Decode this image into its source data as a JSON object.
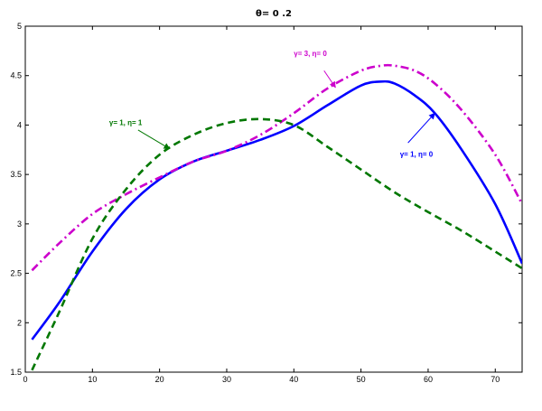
{
  "chart_data": {
    "type": "line",
    "title": "θ= 0 .2",
    "xlabel": "",
    "ylabel": "",
    "xlim": [
      0,
      74
    ],
    "ylim": [
      1.5,
      5
    ],
    "xticks": [
      0,
      10,
      20,
      30,
      40,
      50,
      60,
      70
    ],
    "yticks": [
      1.5,
      2,
      2.5,
      3,
      3.5,
      4,
      4.5,
      5
    ],
    "xtick_labels": [
      "0",
      "10",
      "20",
      "30",
      "40",
      "50",
      "60",
      "70"
    ],
    "ytick_labels": [
      "1.5",
      "2",
      "2.5",
      "3",
      "3.5",
      "4",
      "4.5",
      "5"
    ],
    "grid": false,
    "legend": "none",
    "series": [
      {
        "color": "#0000ff",
        "style": "solid",
        "x": [
          1,
          5,
          10,
          15,
          20,
          25,
          30,
          35,
          40,
          45,
          50,
          53,
          55,
          58,
          61,
          65,
          70,
          74
        ],
        "y": [
          1.83,
          2.2,
          2.72,
          3.15,
          3.45,
          3.63,
          3.74,
          3.85,
          3.99,
          4.2,
          4.4,
          4.44,
          4.42,
          4.3,
          4.12,
          3.75,
          3.2,
          2.6
        ]
      },
      {
        "color": "#cc00cc",
        "style": "dashdot",
        "x": [
          1,
          5,
          10,
          15,
          20,
          25,
          30,
          35,
          40,
          45,
          50,
          53,
          55,
          58,
          61,
          65,
          70,
          74
        ],
        "y": [
          2.53,
          2.8,
          3.1,
          3.3,
          3.47,
          3.63,
          3.74,
          3.9,
          4.12,
          4.37,
          4.55,
          4.6,
          4.6,
          4.55,
          4.42,
          4.15,
          3.7,
          3.2
        ]
      },
      {
        "color": "#007700",
        "style": "dashed",
        "x": [
          1,
          5,
          10,
          15,
          20,
          25,
          30,
          35,
          40,
          45,
          50,
          55,
          60,
          65,
          70,
          74
        ],
        "y": [
          1.52,
          2.1,
          2.85,
          3.35,
          3.7,
          3.9,
          4.02,
          4.06,
          4.0,
          3.78,
          3.55,
          3.32,
          3.12,
          2.93,
          2.72,
          2.55
        ]
      }
    ],
    "annotations": [
      {
        "text": "γ= 3, η= 0",
        "color": "#cc00cc",
        "label_x": 40.0,
        "label_y": 4.7,
        "arrow_from_x": 44.5,
        "arrow_from_y": 4.55,
        "arrow_to_x": 46.2,
        "arrow_to_y": 4.38
      },
      {
        "text": "γ= 1, η= 1",
        "color": "#007700",
        "label_x": 12.5,
        "label_y": 4.0,
        "arrow_from_x": 16.8,
        "arrow_from_y": 3.95,
        "arrow_to_x": 21.5,
        "arrow_to_y": 3.76
      },
      {
        "text": "γ= 1, η= 0",
        "color": "#0000ff",
        "label_x": 55.8,
        "label_y": 3.68,
        "arrow_from_x": 57.0,
        "arrow_from_y": 3.82,
        "arrow_to_x": 61.0,
        "arrow_to_y": 4.12
      }
    ]
  }
}
